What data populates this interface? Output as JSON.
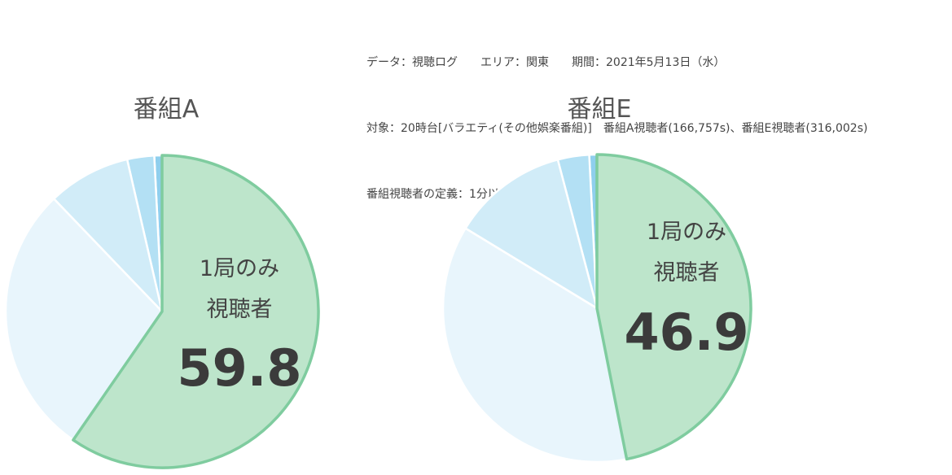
{
  "meta": {
    "line1": "データ：視聴ログ　　エリア：関東　　期間：2021年5月13日（水）",
    "line2": "対象：20時台[バラエティ(その他娯楽番組)]　番組A視聴者(166,757s)、番組E視聴者(316,002s)",
    "line3": "番組視聴者の定義：1分以上視聴あり"
  },
  "colors": {
    "highlight_fill": "#bde5cb",
    "highlight_stroke": "#7fcc9f",
    "slice_fills": [
      "#bde5cb",
      "#e8f5fc",
      "#d1ecf8",
      "#b3e0f4",
      "#8fcfed"
    ],
    "slice_stroke": "#ffffff"
  },
  "chart_data": [
    {
      "type": "pie",
      "title": "番組A",
      "center_label_line1": "1局のみ",
      "center_label_line2": "視聴者",
      "center_value": "59.8",
      "values": [
        59.8,
        28.3,
        8.6,
        2.8,
        0.8
      ]
    },
    {
      "type": "pie",
      "title": "番組E",
      "center_label_line1": "1局のみ",
      "center_label_line2": "視聴者",
      "center_value": "46.9",
      "values": [
        46.9,
        36.8,
        12.2,
        3.3,
        0.8
      ]
    }
  ]
}
